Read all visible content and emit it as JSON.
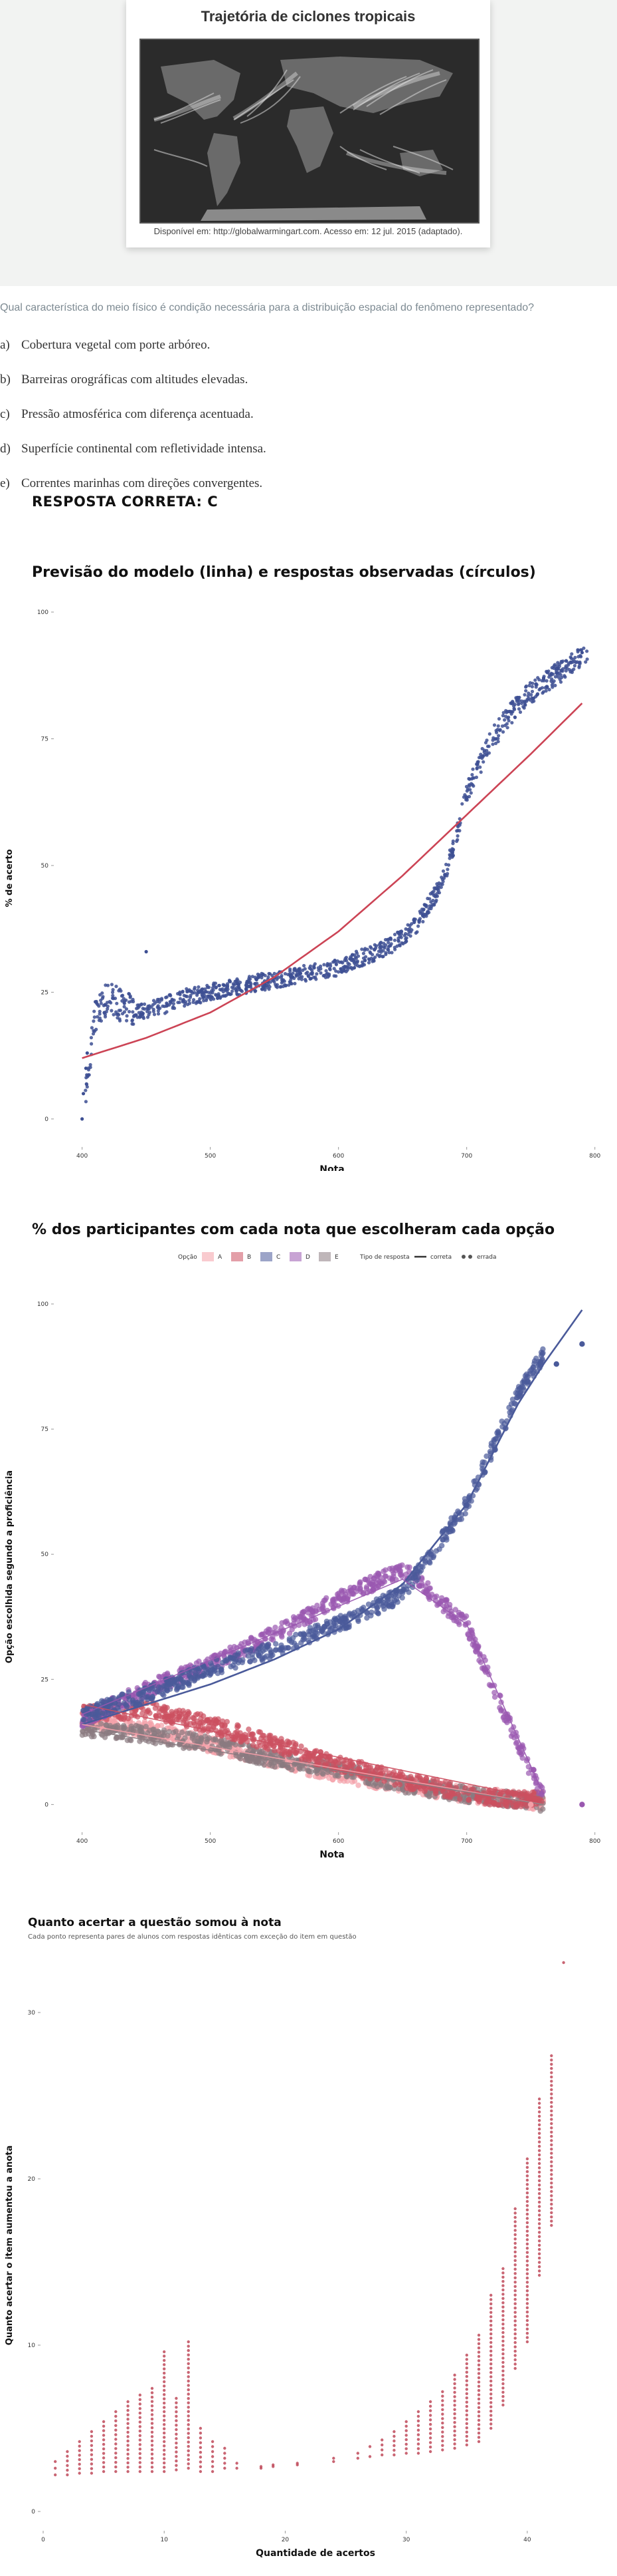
{
  "map": {
    "title": "Trajetória de ciclones tropicais",
    "caption": "Disponível em: http://globalwarmingart.com. Acesso em: 12 jul. 2015 (adaptado)."
  },
  "question": {
    "text": "Qual característica do meio físico é condição necessária para a distribuição espacial do fenômeno representado?",
    "options": [
      {
        "letter": "a)",
        "text": "Cobertura vegetal com porte arbóreo."
      },
      {
        "letter": "b)",
        "text": "Barreiras orográficas com altitudes elevadas."
      },
      {
        "letter": "c)",
        "text": "Pressão atmosférica com diferença acentuada."
      },
      {
        "letter": "d)",
        "text": "Superfície continental com refletividade intensa."
      },
      {
        "letter": "e)",
        "text": "Correntes marinhas com direções convergentes."
      }
    ],
    "answer": "RESPOSTA CORRETA: C"
  },
  "colors": {
    "A": "#f4a0a8",
    "B": "#cc5060",
    "C": "#4a5a9a",
    "D": "#9a58b0",
    "E": "#8a7a80",
    "model_line": "#cc4455",
    "points": "#3d4f93",
    "gain": "#c04a5a"
  },
  "chart_data": [
    {
      "type": "scatter",
      "title": "Previsão do modelo (linha) e respostas observadas (círculos)",
      "xlabel": "Nota",
      "ylabel": "% de acerto",
      "xlim": [
        380,
        810
      ],
      "ylim": [
        -5,
        100
      ],
      "x_ticks": [
        "400",
        "500",
        "600",
        "700",
        "800"
      ],
      "y_ticks": [
        "0",
        "25",
        "50",
        "75",
        "100"
      ],
      "grid": false,
      "model_curve": {
        "x": [
          400,
          450,
          500,
          550,
          600,
          650,
          700,
          750,
          790
        ],
        "y": [
          12,
          16,
          21,
          28,
          37,
          48,
          60,
          72,
          82
        ]
      },
      "observed": {
        "x": [
          400,
          410,
          420,
          440,
          460,
          480,
          500,
          520,
          540,
          560,
          580,
          600,
          620,
          640,
          660,
          680,
          690,
          700,
          710,
          720,
          740,
          760,
          790
        ],
        "y": [
          0,
          20,
          24,
          21,
          22,
          24,
          25,
          26,
          27,
          28,
          29,
          30,
          32,
          34,
          38,
          46,
          54,
          64,
          70,
          75,
          82,
          86,
          91
        ]
      }
    },
    {
      "type": "scatter",
      "title": "% dos participantes com cada nota que escolheram cada opção",
      "xlabel": "Nota",
      "ylabel": "Opção escolhida segundo a proficiência",
      "xlim": [
        380,
        810
      ],
      "ylim": [
        -5,
        100
      ],
      "x_ticks": [
        "400",
        "500",
        "600",
        "700",
        "800"
      ],
      "y_ticks": [
        "0",
        "25",
        "50",
        "75",
        "100"
      ],
      "legend": {
        "option_title": "Opção",
        "options": [
          "A",
          "B",
          "C",
          "D",
          "E"
        ],
        "type_title": "Tipo de resposta",
        "types": [
          "correta",
          "errada"
        ],
        "placement": "top"
      },
      "series": [
        {
          "name": "A",
          "x": [
            400,
            450,
            500,
            550,
            600,
            650,
            700,
            740,
            760
          ],
          "y": [
            17,
            15,
            12,
            9,
            6,
            4,
            2,
            1,
            0
          ]
        },
        {
          "name": "B",
          "x": [
            400,
            450,
            500,
            550,
            600,
            650,
            700,
            740,
            760
          ],
          "y": [
            18,
            19,
            16,
            12,
            8,
            5,
            2,
            1,
            1
          ]
        },
        {
          "name": "C",
          "x": [
            400,
            450,
            500,
            550,
            600,
            650,
            700,
            740,
            760
          ],
          "y": [
            18,
            22,
            27,
            31,
            36,
            42,
            60,
            82,
            90
          ]
        },
        {
          "name": "D",
          "x": [
            400,
            450,
            500,
            550,
            600,
            650,
            700,
            740,
            760
          ],
          "y": [
            17,
            23,
            28,
            34,
            41,
            47,
            36,
            12,
            2
          ]
        },
        {
          "name": "E",
          "x": [
            400,
            450,
            500,
            550,
            600,
            650,
            700,
            740,
            760
          ],
          "y": [
            15,
            14,
            12,
            9,
            7,
            4,
            2,
            1,
            0
          ]
        }
      ]
    },
    {
      "type": "scatter",
      "title": "Quanto acertar a questão somou à nota",
      "subtitle": "Cada ponto representa pares de alunos com respostas idênticas com exceção do item em questão",
      "xlabel": "Quantidade de acertos",
      "ylabel": "Quanto acertar o item aumentou a anota",
      "xlim": [
        0,
        45
      ],
      "ylim": [
        -1,
        33
      ],
      "x_ticks": [
        "0",
        "10",
        "20",
        "30",
        "40"
      ],
      "y_ticks": [
        "0",
        "10",
        "20",
        "30"
      ],
      "groups": [
        {
          "x": 1,
          "ymin": 2.2,
          "ymax": 3.0
        },
        {
          "x": 2,
          "ymin": 2.2,
          "ymax": 3.6
        },
        {
          "x": 3,
          "ymin": 2.3,
          "ymax": 4.2
        },
        {
          "x": 4,
          "ymin": 2.3,
          "ymax": 4.8
        },
        {
          "x": 5,
          "ymin": 2.4,
          "ymax": 5.4
        },
        {
          "x": 6,
          "ymin": 2.4,
          "ymax": 6.0
        },
        {
          "x": 7,
          "ymin": 2.4,
          "ymax": 6.6
        },
        {
          "x": 8,
          "ymin": 2.4,
          "ymax": 7.0
        },
        {
          "x": 9,
          "ymin": 2.4,
          "ymax": 7.4
        },
        {
          "x": 10,
          "ymin": 2.4,
          "ymax": 9.6
        },
        {
          "x": 11,
          "ymin": 2.5,
          "ymax": 6.8
        },
        {
          "x": 12,
          "ymin": 2.6,
          "ymax": 10.2
        },
        {
          "x": 13,
          "ymin": 2.4,
          "ymax": 5.0
        },
        {
          "x": 14,
          "ymin": 2.4,
          "ymax": 4.2
        },
        {
          "x": 15,
          "ymin": 2.6,
          "ymax": 3.8
        },
        {
          "x": 16,
          "ymin": 2.6,
          "ymax": 2.9
        },
        {
          "x": 18,
          "ymin": 2.6,
          "ymax": 2.7
        },
        {
          "x": 19,
          "ymin": 2.7,
          "ymax": 2.8
        },
        {
          "x": 21,
          "ymin": 2.8,
          "ymax": 2.9
        },
        {
          "x": 24,
          "ymin": 3.0,
          "ymax": 3.2
        },
        {
          "x": 26,
          "ymin": 3.2,
          "ymax": 3.5
        },
        {
          "x": 27,
          "ymin": 3.3,
          "ymax": 3.9
        },
        {
          "x": 28,
          "ymin": 3.4,
          "ymax": 4.3
        },
        {
          "x": 29,
          "ymin": 3.4,
          "ymax": 4.8
        },
        {
          "x": 30,
          "ymin": 3.5,
          "ymax": 5.4
        },
        {
          "x": 31,
          "ymin": 3.5,
          "ymax": 6.0
        },
        {
          "x": 32,
          "ymin": 3.6,
          "ymax": 6.6
        },
        {
          "x": 33,
          "ymin": 3.7,
          "ymax": 7.2
        },
        {
          "x": 34,
          "ymin": 3.8,
          "ymax": 8.2
        },
        {
          "x": 35,
          "ymin": 4.0,
          "ymax": 9.4
        },
        {
          "x": 36,
          "ymin": 4.2,
          "ymax": 10.6
        },
        {
          "x": 37,
          "ymin": 5.0,
          "ymax": 13.0
        },
        {
          "x": 38,
          "ymin": 6.4,
          "ymax": 14.6
        },
        {
          "x": 39,
          "ymin": 8.6,
          "ymax": 18.2
        },
        {
          "x": 40,
          "ymin": 10.2,
          "ymax": 21.2
        },
        {
          "x": 41,
          "ymin": 14.2,
          "ymax": 24.8
        },
        {
          "x": 42,
          "ymin": 17.2,
          "ymax": 27.4
        },
        {
          "x": 43,
          "ymin": 33.0,
          "ymax": 33.0
        }
      ]
    }
  ]
}
